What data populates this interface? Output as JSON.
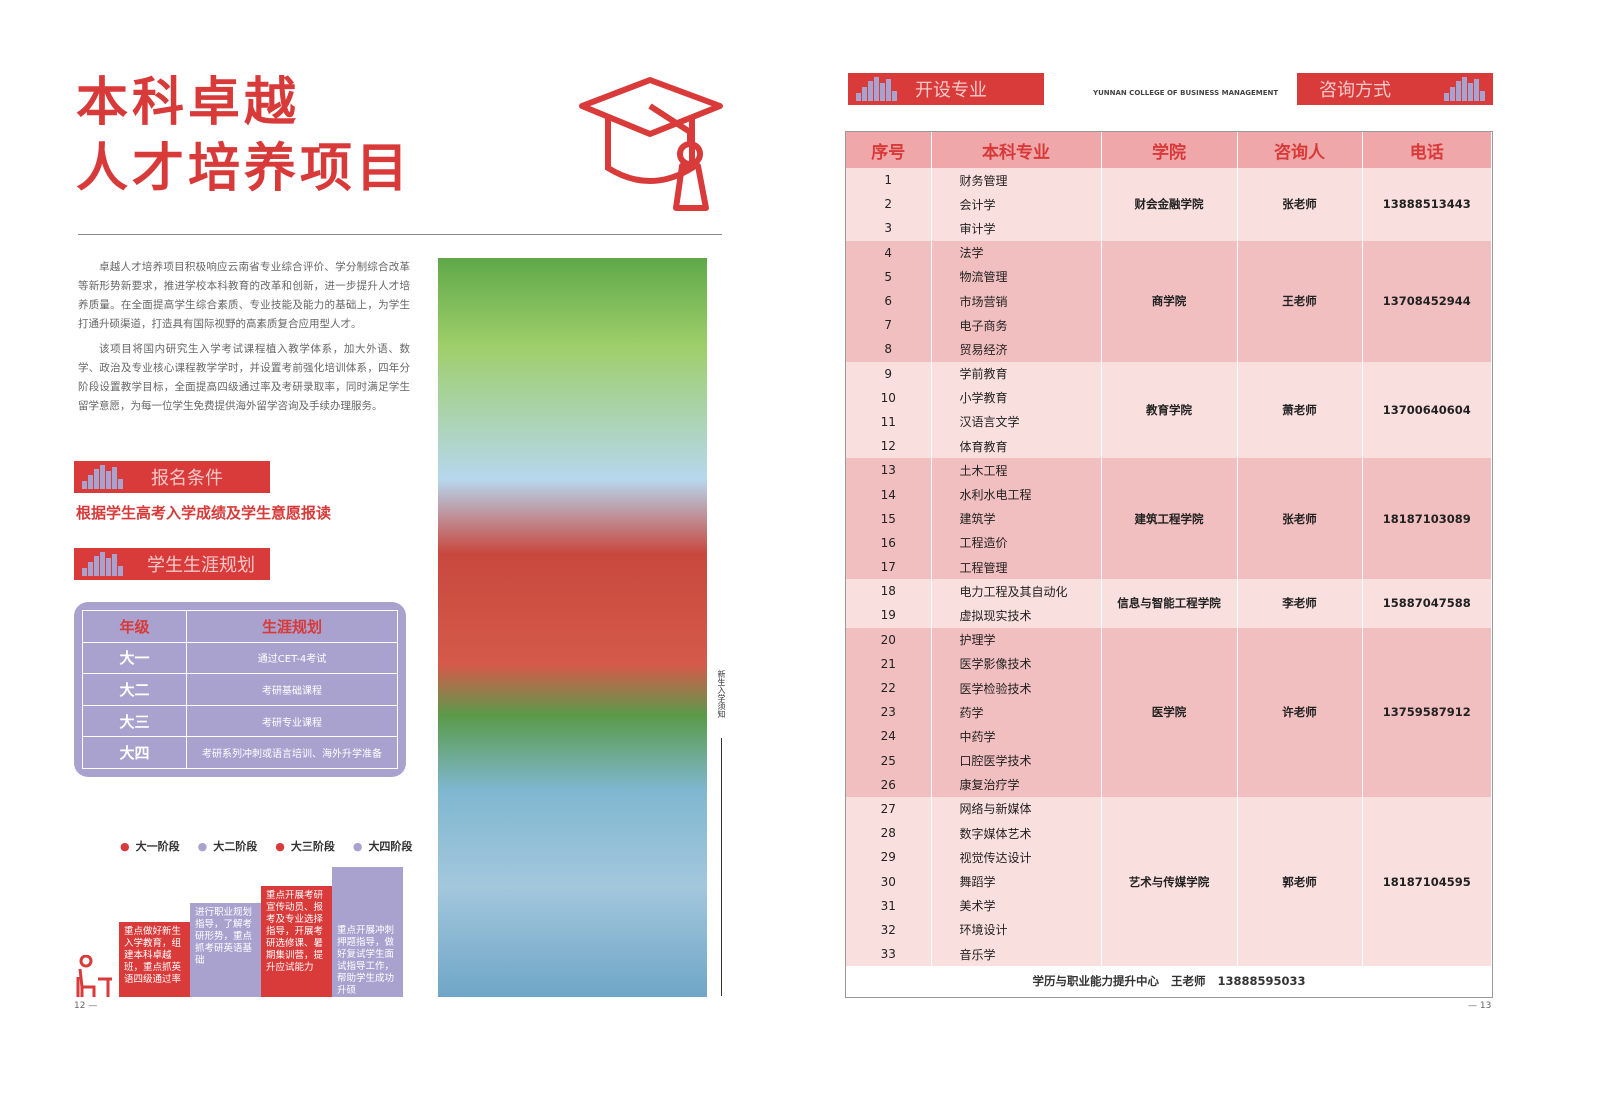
{
  "title": {
    "line1": "本科卓越",
    "line2": "人才培养项目"
  },
  "intro": [
    "卓越人才培养项目积极响应云南省专业综合评价、学分制综合改革等新形势新要求，推进学校本科教育的改革和创新，进一步提升人才培养质量。在全面提高学生综合素质、专业技能及能力的基础上，为学生打通升硕渠道，打造具有国际视野的高素质复合应用型人才。",
    "该项目将国内研究生入学考试课程植入教学体系，加大外语、数学、政治及专业核心课程教学学时，并设置考前强化培训体系，四年分阶段设置教学目标，全面提高四级通过率及考研录取率，同时满足学生留学意愿，为每一位学生免费提供海外留学咨询及手续办理服务。"
  ],
  "sections": {
    "enroll": "报名条件",
    "enroll_text": "根据学生高考入学成绩及学生意愿报读",
    "career": "学生生涯规划",
    "majors": "开设专业",
    "contact": "咨询方式"
  },
  "career_table": {
    "headers": [
      "年级",
      "生涯规划"
    ],
    "rows": [
      [
        "大一",
        "通过CET-4考试"
      ],
      [
        "大二",
        "考研基础课程"
      ],
      [
        "大三",
        "考研专业课程"
      ],
      [
        "大四",
        "考研系列冲刺或语言培训、海外升学准备"
      ]
    ]
  },
  "stages": {
    "legend": [
      "大一阶段",
      "大二阶段",
      "大三阶段",
      "大四阶段"
    ],
    "texts": [
      "重点做好新生入学教育，组建本科卓越班，重点抓英语四级通过率",
      "进行职业规划指导，了解考研形势，重点抓考研英语基础",
      "重点开展考研宣传动员、报考及专业选择指导，开展考研选修课、暑期集训营，提升应试能力",
      "重点开展冲刺押题指导，做好复试学生面试指导工作，帮助学生成功升硕"
    ]
  },
  "side_label": "新生入学须知",
  "college_name": "YUNNAN COLLEGE OF BUSINESS MANAGEMENT",
  "page_left": "12 —",
  "page_right": "— 13",
  "colors": {
    "red": "#d93a3a",
    "lavender": "#a9a2cf",
    "pink_light": "#fadfdf",
    "pink_dark": "#f2bfc1"
  },
  "majors_table": {
    "headers": [
      "序号",
      "本科专业",
      "学院",
      "咨询人",
      "电话"
    ],
    "groups": [
      {
        "college": "财会金融学院",
        "contact": "张老师",
        "phone": "13888513443",
        "majors": [
          "财务管理",
          "会计学",
          "审计学"
        ]
      },
      {
        "college": "商学院",
        "contact": "王老师",
        "phone": "13708452944",
        "majors": [
          "法学",
          "物流管理",
          "市场营销",
          "电子商务",
          "贸易经济"
        ]
      },
      {
        "college": "教育学院",
        "contact": "萧老师",
        "phone": "13700640604",
        "majors": [
          "学前教育",
          "小学教育",
          "汉语言文学",
          "体育教育"
        ]
      },
      {
        "college": "建筑工程学院",
        "contact": "张老师",
        "phone": "18187103089",
        "majors": [
          "土木工程",
          "水利水电工程",
          "建筑学",
          "工程造价",
          "工程管理"
        ]
      },
      {
        "college": "信息与智能工程学院",
        "contact": "李老师",
        "phone": "15887047588",
        "majors": [
          "电力工程及其自动化",
          "虚拟现实技术"
        ]
      },
      {
        "college": "医学院",
        "contact": "许老师",
        "phone": "13759587912",
        "majors": [
          "护理学",
          "医学影像技术",
          "医学检验技术",
          "药学",
          "中药学",
          "口腔医学技术",
          "康复治疗学"
        ]
      },
      {
        "college": "艺术与传媒学院",
        "contact": "郭老师",
        "phone": "18187104595",
        "majors": [
          "网络与新媒体",
          "数字媒体艺术",
          "视觉传达设计",
          "舞蹈学",
          "美术学",
          "环境设计",
          "音乐学"
        ]
      }
    ],
    "footer": {
      "center": "学历与职业能力提升中心",
      "contact": "王老师",
      "phone": "13888595033"
    }
  }
}
